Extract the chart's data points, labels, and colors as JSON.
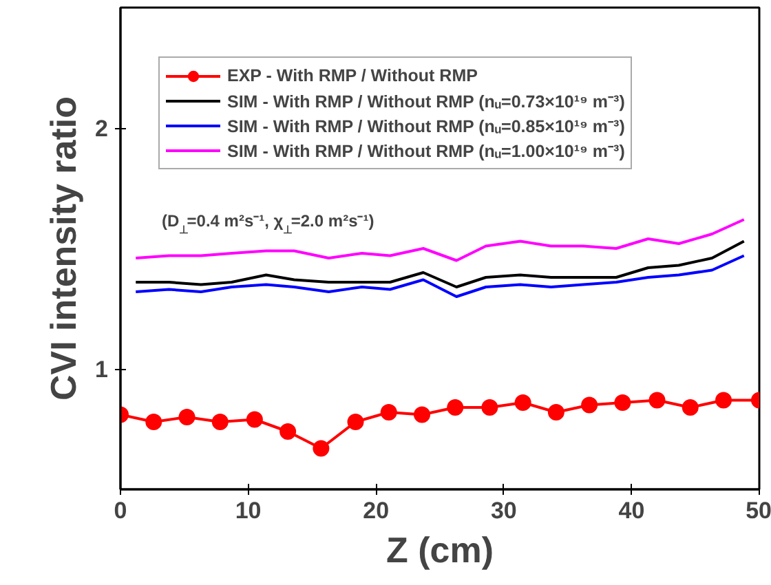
{
  "chart_data": {
    "type": "line",
    "xlabel": "Z (cm)",
    "ylabel": "CVI intensity ratio",
    "xlim": [
      0,
      50
    ],
    "xticks": [
      0,
      10,
      20,
      30,
      40,
      50
    ],
    "ylim": [
      0.5,
      2.5
    ],
    "yticks": [
      1,
      2
    ],
    "legend": "top",
    "grid": false,
    "annotations": [
      "(D$_{⊥}$=0.4 m²s⁻¹, χ$_{⊥}$=2.0 m²s⁻¹)"
    ],
    "series": [
      {
        "name": "EXP - With RMP / Without RMP",
        "color": "#ff0000",
        "marker": "circle",
        "x": [
          0,
          2.6,
          5.2,
          7.8,
          10.5,
          13.1,
          15.7,
          18.4,
          21,
          23.6,
          26.2,
          28.9,
          31.5,
          34.1,
          36.7,
          39.3,
          42,
          44.6,
          47.2,
          50
        ],
        "values": [
          0.81,
          0.78,
          0.8,
          0.78,
          0.79,
          0.74,
          0.67,
          0.78,
          0.82,
          0.81,
          0.84,
          0.84,
          0.86,
          0.82,
          0.85,
          0.86,
          0.87,
          0.84,
          0.87,
          0.87
        ]
      },
      {
        "name": "SIM - With RMP / Without RMP (nᵤ=0.73×10¹⁹ m⁻³)",
        "color": "#000000",
        "x": [
          1.2,
          3.8,
          6.3,
          8.7,
          11.4,
          13.6,
          16.3,
          18.9,
          21.1,
          23.7,
          26.3,
          28.6,
          31.3,
          33.7,
          36.2,
          38.8,
          41.3,
          43.7,
          46.3,
          48.8
        ],
        "values": [
          1.36,
          1.36,
          1.35,
          1.36,
          1.39,
          1.37,
          1.36,
          1.36,
          1.36,
          1.4,
          1.34,
          1.38,
          1.39,
          1.38,
          1.38,
          1.38,
          1.42,
          1.43,
          1.46,
          1.53
        ]
      },
      {
        "name": "SIM - With RMP / Without RMP (nᵤ=0.85×10¹⁹ m⁻³)",
        "color": "#0000ff",
        "x": [
          1.2,
          3.8,
          6.3,
          8.7,
          11.4,
          13.6,
          16.3,
          18.9,
          21.1,
          23.7,
          26.3,
          28.6,
          31.3,
          33.7,
          36.2,
          38.8,
          41.3,
          43.7,
          46.3,
          48.8
        ],
        "values": [
          1.32,
          1.33,
          1.32,
          1.34,
          1.35,
          1.34,
          1.32,
          1.34,
          1.33,
          1.37,
          1.3,
          1.34,
          1.35,
          1.34,
          1.35,
          1.36,
          1.38,
          1.39,
          1.41,
          1.47
        ]
      },
      {
        "name": "SIM - With RMP / Without RMP (nᵤ=1.00×10¹⁹ m⁻³)",
        "color": "#ff00ff",
        "x": [
          1.2,
          3.8,
          6.3,
          8.7,
          11.4,
          13.6,
          16.3,
          18.9,
          21.1,
          23.7,
          26.3,
          28.6,
          31.3,
          33.7,
          36.2,
          38.8,
          41.3,
          43.7,
          46.3,
          48.8
        ],
        "values": [
          1.46,
          1.47,
          1.47,
          1.48,
          1.49,
          1.49,
          1.46,
          1.48,
          1.47,
          1.5,
          1.45,
          1.51,
          1.53,
          1.51,
          1.51,
          1.5,
          1.54,
          1.52,
          1.56,
          1.62
        ]
      }
    ]
  }
}
